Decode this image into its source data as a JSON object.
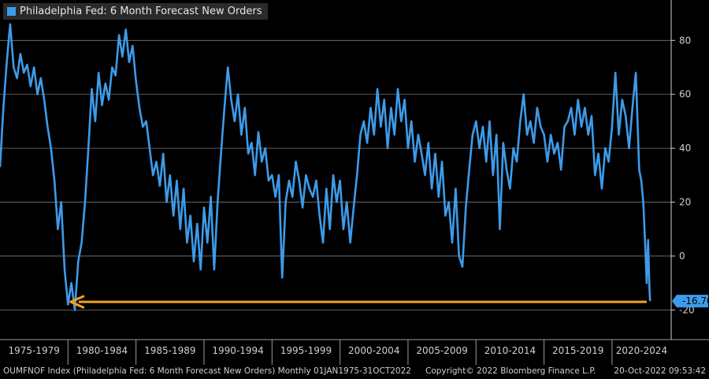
{
  "legend": {
    "label": "Philadelphia Fed: 6 Month Forecast New Orders",
    "swatch_color": "#3d9be9"
  },
  "colors": {
    "line": "#3d9be9",
    "arrow": "#f4a020",
    "grid": "#7a7a7a",
    "badge_bg": "#3d9be9",
    "badge_text": "#000000"
  },
  "last_value_label": "-16.70",
  "footer": {
    "left": "OUMFNOF Index (Philadelphia Fed: 6 Month Forecast New Orders)  Monthly 01JAN1975-31OCT2022",
    "center": "Copyright© 2022 Bloomberg Finance L.P.",
    "right": "20-Oct-2022 09:53:42"
  },
  "chart_data": {
    "type": "line",
    "title": "Philadelphia Fed: 6 Month Forecast New Orders",
    "ylim": [
      -31,
      95
    ],
    "y_ticks": [
      -20,
      0,
      20,
      40,
      60,
      80
    ],
    "x_range": [
      1975.0,
      2024.35
    ],
    "x_period_labels": [
      "1975-1979",
      "1980-1984",
      "1985-1989",
      "1990-1994",
      "1995-1999",
      "2000-2004",
      "2005-2009",
      "2010-2014",
      "2015-2019",
      "2020-2024"
    ],
    "grid": true,
    "legend_position": "top-left",
    "last_value": -16.7,
    "annotation": "orange arrow pointing left at about the -16.7 level",
    "series": [
      {
        "name": "Philadelphia Fed: 6 Month Forecast New Orders",
        "points": [
          [
            1975.0,
            33
          ],
          [
            1975.25,
            55
          ],
          [
            1975.5,
            72
          ],
          [
            1975.75,
            86
          ],
          [
            1976.0,
            70
          ],
          [
            1976.25,
            66
          ],
          [
            1976.5,
            75
          ],
          [
            1976.75,
            68
          ],
          [
            1977.0,
            71
          ],
          [
            1977.25,
            63
          ],
          [
            1977.5,
            70
          ],
          [
            1977.75,
            60
          ],
          [
            1978.0,
            66
          ],
          [
            1978.25,
            58
          ],
          [
            1978.5,
            48
          ],
          [
            1978.75,
            40
          ],
          [
            1979.0,
            28
          ],
          [
            1979.25,
            10
          ],
          [
            1979.5,
            20
          ],
          [
            1979.75,
            -5
          ],
          [
            1980.0,
            -18
          ],
          [
            1980.25,
            -10
          ],
          [
            1980.5,
            -20
          ],
          [
            1980.75,
            -2
          ],
          [
            1981.0,
            5
          ],
          [
            1981.25,
            20
          ],
          [
            1981.5,
            40
          ],
          [
            1981.75,
            62
          ],
          [
            1982.0,
            50
          ],
          [
            1982.25,
            68
          ],
          [
            1982.5,
            56
          ],
          [
            1982.75,
            64
          ],
          [
            1983.0,
            58
          ],
          [
            1983.25,
            70
          ],
          [
            1983.5,
            67
          ],
          [
            1983.75,
            82
          ],
          [
            1984.0,
            74
          ],
          [
            1984.25,
            84
          ],
          [
            1984.5,
            72
          ],
          [
            1984.75,
            78
          ],
          [
            1985.0,
            65
          ],
          [
            1985.25,
            55
          ],
          [
            1985.5,
            48
          ],
          [
            1985.75,
            50
          ],
          [
            1986.0,
            40
          ],
          [
            1986.25,
            30
          ],
          [
            1986.5,
            35
          ],
          [
            1986.75,
            26
          ],
          [
            1987.0,
            38
          ],
          [
            1987.25,
            20
          ],
          [
            1987.5,
            30
          ],
          [
            1987.75,
            15
          ],
          [
            1988.0,
            28
          ],
          [
            1988.25,
            10
          ],
          [
            1988.5,
            25
          ],
          [
            1988.75,
            5
          ],
          [
            1989.0,
            15
          ],
          [
            1989.25,
            -2
          ],
          [
            1989.5,
            12
          ],
          [
            1989.75,
            -5
          ],
          [
            1990.0,
            18
          ],
          [
            1990.25,
            5
          ],
          [
            1990.5,
            22
          ],
          [
            1990.75,
            -5
          ],
          [
            1991.0,
            20
          ],
          [
            1991.25,
            38
          ],
          [
            1991.5,
            55
          ],
          [
            1991.75,
            70
          ],
          [
            1992.0,
            58
          ],
          [
            1992.25,
            50
          ],
          [
            1992.5,
            60
          ],
          [
            1992.75,
            45
          ],
          [
            1993.0,
            55
          ],
          [
            1993.25,
            38
          ],
          [
            1993.5,
            42
          ],
          [
            1993.75,
            30
          ],
          [
            1994.0,
            46
          ],
          [
            1994.25,
            35
          ],
          [
            1994.5,
            40
          ],
          [
            1994.75,
            28
          ],
          [
            1995.0,
            30
          ],
          [
            1995.25,
            22
          ],
          [
            1995.5,
            30
          ],
          [
            1995.75,
            -8
          ],
          [
            1996.0,
            20
          ],
          [
            1996.25,
            28
          ],
          [
            1996.5,
            22
          ],
          [
            1996.75,
            35
          ],
          [
            1997.0,
            28
          ],
          [
            1997.25,
            18
          ],
          [
            1997.5,
            30
          ],
          [
            1997.75,
            25
          ],
          [
            1998.0,
            22
          ],
          [
            1998.25,
            28
          ],
          [
            1998.5,
            15
          ],
          [
            1998.75,
            5
          ],
          [
            1999.0,
            25
          ],
          [
            1999.25,
            10
          ],
          [
            1999.5,
            30
          ],
          [
            1999.75,
            20
          ],
          [
            2000.0,
            28
          ],
          [
            2000.25,
            10
          ],
          [
            2000.5,
            20
          ],
          [
            2000.75,
            5
          ],
          [
            2001.0,
            18
          ],
          [
            2001.25,
            30
          ],
          [
            2001.5,
            45
          ],
          [
            2001.75,
            50
          ],
          [
            2002.0,
            42
          ],
          [
            2002.25,
            55
          ],
          [
            2002.5,
            45
          ],
          [
            2002.75,
            62
          ],
          [
            2003.0,
            48
          ],
          [
            2003.25,
            58
          ],
          [
            2003.5,
            40
          ],
          [
            2003.75,
            55
          ],
          [
            2004.0,
            45
          ],
          [
            2004.25,
            62
          ],
          [
            2004.5,
            50
          ],
          [
            2004.75,
            58
          ],
          [
            2005.0,
            40
          ],
          [
            2005.25,
            50
          ],
          [
            2005.5,
            35
          ],
          [
            2005.75,
            45
          ],
          [
            2006.0,
            38
          ],
          [
            2006.25,
            30
          ],
          [
            2006.5,
            42
          ],
          [
            2006.75,
            25
          ],
          [
            2007.0,
            38
          ],
          [
            2007.25,
            22
          ],
          [
            2007.5,
            35
          ],
          [
            2007.75,
            15
          ],
          [
            2008.0,
            20
          ],
          [
            2008.25,
            5
          ],
          [
            2008.5,
            25
          ],
          [
            2008.75,
            0
          ],
          [
            2009.0,
            -4
          ],
          [
            2009.25,
            18
          ],
          [
            2009.5,
            32
          ],
          [
            2009.75,
            45
          ],
          [
            2010.0,
            50
          ],
          [
            2010.25,
            40
          ],
          [
            2010.5,
            48
          ],
          [
            2010.75,
            35
          ],
          [
            2011.0,
            50
          ],
          [
            2011.25,
            30
          ],
          [
            2011.5,
            45
          ],
          [
            2011.75,
            10
          ],
          [
            2012.0,
            42
          ],
          [
            2012.25,
            32
          ],
          [
            2012.5,
            25
          ],
          [
            2012.75,
            40
          ],
          [
            2013.0,
            35
          ],
          [
            2013.25,
            50
          ],
          [
            2013.5,
            60
          ],
          [
            2013.75,
            45
          ],
          [
            2014.0,
            50
          ],
          [
            2014.25,
            42
          ],
          [
            2014.5,
            55
          ],
          [
            2014.75,
            48
          ],
          [
            2015.0,
            45
          ],
          [
            2015.25,
            35
          ],
          [
            2015.5,
            45
          ],
          [
            2015.75,
            38
          ],
          [
            2016.0,
            42
          ],
          [
            2016.25,
            32
          ],
          [
            2016.5,
            48
          ],
          [
            2016.75,
            50
          ],
          [
            2017.0,
            55
          ],
          [
            2017.25,
            45
          ],
          [
            2017.5,
            58
          ],
          [
            2017.75,
            48
          ],
          [
            2018.0,
            55
          ],
          [
            2018.25,
            45
          ],
          [
            2018.5,
            52
          ],
          [
            2018.75,
            30
          ],
          [
            2019.0,
            38
          ],
          [
            2019.25,
            25
          ],
          [
            2019.5,
            40
          ],
          [
            2019.75,
            35
          ],
          [
            2020.0,
            48
          ],
          [
            2020.25,
            68
          ],
          [
            2020.5,
            45
          ],
          [
            2020.75,
            58
          ],
          [
            2021.0,
            52
          ],
          [
            2021.25,
            40
          ],
          [
            2021.5,
            55
          ],
          [
            2021.75,
            68
          ],
          [
            2022.0,
            32
          ],
          [
            2022.15,
            28
          ],
          [
            2022.3,
            20
          ],
          [
            2022.45,
            3
          ],
          [
            2022.55,
            -10
          ],
          [
            2022.65,
            6
          ],
          [
            2022.75,
            -12
          ],
          [
            2022.8,
            -16.7
          ]
        ]
      }
    ]
  }
}
